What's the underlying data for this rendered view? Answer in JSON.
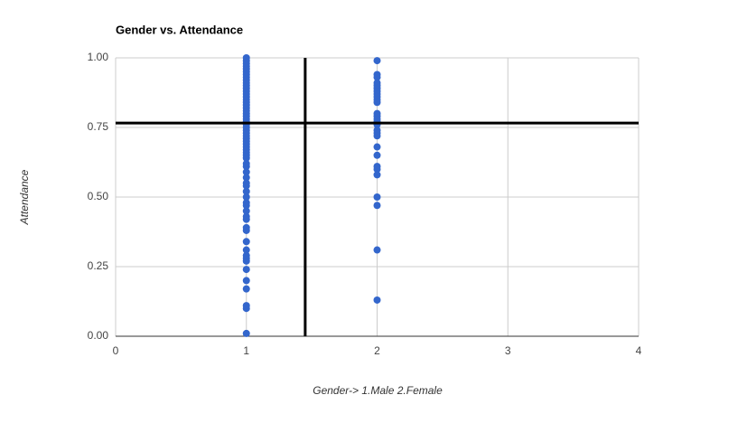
{
  "chart_data": {
    "type": "scatter",
    "title": "Gender vs. Attendance",
    "xlabel": "Gender-> 1.Male 2.Female",
    "ylabel": "Attendance",
    "color": "#3366cc",
    "x": [
      1,
      1,
      1,
      1,
      1,
      1,
      1,
      1,
      1,
      1,
      1,
      1,
      1,
      1,
      1,
      1,
      1,
      1,
      1,
      1,
      1,
      1,
      1,
      1,
      1,
      1,
      1,
      1,
      1,
      1,
      1,
      1,
      1,
      1,
      1,
      1,
      1,
      1,
      1,
      1,
      1,
      1,
      1,
      1,
      1,
      1,
      1,
      1,
      1,
      1,
      1,
      1,
      1,
      1,
      1,
      1,
      1,
      1,
      1,
      1,
      1,
      1,
      1,
      2,
      2,
      2,
      2,
      2,
      2,
      2,
      2,
      2,
      2,
      2,
      2,
      2,
      2,
      2,
      2,
      2,
      2,
      2,
      2,
      2,
      2,
      2,
      2,
      2,
      2,
      2,
      2
    ],
    "values": [
      0.01,
      0.1,
      0.11,
      0.17,
      0.2,
      0.24,
      0.27,
      0.28,
      0.29,
      0.31,
      0.34,
      0.38,
      0.39,
      0.42,
      0.43,
      0.45,
      0.47,
      0.48,
      0.5,
      0.52,
      0.54,
      0.55,
      0.57,
      0.59,
      0.61,
      0.62,
      0.64,
      0.65,
      0.66,
      0.67,
      0.68,
      0.69,
      0.7,
      0.71,
      0.72,
      0.73,
      0.74,
      0.75,
      0.76,
      0.77,
      0.78,
      0.79,
      0.8,
      0.81,
      0.82,
      0.83,
      0.84,
      0.85,
      0.86,
      0.87,
      0.88,
      0.89,
      0.9,
      0.91,
      0.92,
      0.93,
      0.94,
      0.95,
      0.96,
      0.97,
      0.98,
      0.99,
      1,
      0.99,
      0.94,
      0.93,
      0.91,
      0.9,
      0.89,
      0.88,
      0.87,
      0.86,
      0.85,
      0.84,
      0.8,
      0.79,
      0.78,
      0.77,
      0.76,
      0.74,
      0.73,
      0.72,
      0.68,
      0.65,
      0.61,
      0.6,
      0.58,
      0.5,
      0.47,
      0.31,
      0.13
    ],
    "xlim": [
      0,
      4
    ],
    "xticks": [
      0,
      1,
      2,
      3,
      4
    ],
    "ylim": [
      0,
      1
    ],
    "yticks": [
      {
        "value": 0,
        "label": "0.00"
      },
      {
        "value": 0.25,
        "label": "0.25"
      },
      {
        "value": 0.5,
        "label": "0.50"
      },
      {
        "value": 0.75,
        "label": "0.75"
      },
      {
        "value": 1,
        "label": "1.00"
      }
    ],
    "grid": true,
    "reference_lines": [
      {
        "axis": "x",
        "value": 1.45
      },
      {
        "axis": "y",
        "value": 0.766
      }
    ]
  }
}
